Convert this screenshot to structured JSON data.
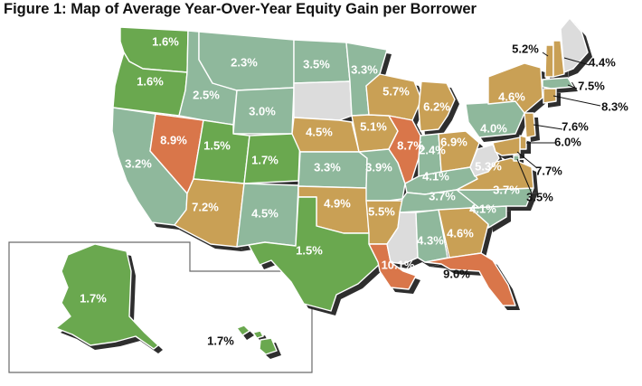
{
  "title": "Figure 1: Map of Average Year-Over-Year Equity Gain per Borrower",
  "colors": {
    "green": "#6aa84f",
    "teal": "#8fb89c",
    "tan": "#c9a055",
    "orange": "#d9764a",
    "gray": "#dcdcdc",
    "shadow": "#2e2e2e"
  },
  "states": [
    {
      "state": "WA",
      "value": "1.6%",
      "color": "green"
    },
    {
      "state": "OR",
      "value": "1.6%",
      "color": "green"
    },
    {
      "state": "CA",
      "value": "3.2%",
      "color": "teal"
    },
    {
      "state": "NV",
      "value": "8.9%",
      "color": "orange"
    },
    {
      "state": "ID",
      "value": "2.5%",
      "color": "teal"
    },
    {
      "state": "MT",
      "value": "2.3%",
      "color": "teal"
    },
    {
      "state": "WY",
      "value": "3.0%",
      "color": "teal"
    },
    {
      "state": "UT",
      "value": "1.5%",
      "color": "green"
    },
    {
      "state": "AZ",
      "value": "7.2%",
      "color": "tan"
    },
    {
      "state": "CO",
      "value": "1.7%",
      "color": "green"
    },
    {
      "state": "NM",
      "value": "4.5%",
      "color": "teal"
    },
    {
      "state": "ND",
      "value": "3.5%",
      "color": "teal"
    },
    {
      "state": "SD",
      "value": "",
      "color": "gray"
    },
    {
      "state": "NE",
      "value": "4.5%",
      "color": "tan"
    },
    {
      "state": "KS",
      "value": "3.3%",
      "color": "teal"
    },
    {
      "state": "OK",
      "value": "4.9%",
      "color": "tan"
    },
    {
      "state": "TX",
      "value": "1.5%",
      "color": "green"
    },
    {
      "state": "MN",
      "value": "3.3%",
      "color": "teal"
    },
    {
      "state": "IA",
      "value": "5.1%",
      "color": "tan"
    },
    {
      "state": "MO",
      "value": "3.9%",
      "color": "teal"
    },
    {
      "state": "AR",
      "value": "5.5%",
      "color": "tan"
    },
    {
      "state": "LA",
      "value": "10.1%",
      "color": "orange"
    },
    {
      "state": "WI",
      "value": "5.7%",
      "color": "tan"
    },
    {
      "state": "IL",
      "value": "8.7%",
      "color": "orange"
    },
    {
      "state": "MI",
      "value": "6.2%",
      "color": "tan"
    },
    {
      "state": "IN",
      "value": "2.4%",
      "color": "teal"
    },
    {
      "state": "OH",
      "value": "6.9%",
      "color": "tan"
    },
    {
      "state": "KY",
      "value": "4.1%",
      "color": "teal"
    },
    {
      "state": "TN",
      "value": "3.7%",
      "color": "teal"
    },
    {
      "state": "MS",
      "value": "",
      "color": "gray"
    },
    {
      "state": "AL",
      "value": "4.3%",
      "color": "teal"
    },
    {
      "state": "GA",
      "value": "4.6%",
      "color": "tan"
    },
    {
      "state": "FL",
      "value": "9.0%",
      "color": "orange"
    },
    {
      "state": "SC",
      "value": "4.1%",
      "color": "teal"
    },
    {
      "state": "NC",
      "value": "3.7%",
      "color": "teal"
    },
    {
      "state": "VA",
      "value": "5.3%",
      "color": "tan"
    },
    {
      "state": "WV",
      "value": "",
      "color": "gray"
    },
    {
      "state": "PA",
      "value": "4.0%",
      "color": "teal"
    },
    {
      "state": "NY",
      "value": "4.6%",
      "color": "tan"
    },
    {
      "state": "VT",
      "value": "5.2%",
      "color": "tan"
    },
    {
      "state": "NH",
      "value": "4.4%",
      "color": "tan"
    },
    {
      "state": "ME",
      "value": "",
      "color": "gray"
    },
    {
      "state": "MA",
      "value": "7.5%",
      "color": "teal"
    },
    {
      "state": "CT",
      "value": "8.3%",
      "color": "tan"
    },
    {
      "state": "NJ",
      "value": "7.6%",
      "color": "tan"
    },
    {
      "state": "DE",
      "value": "6.0%",
      "color": "tan"
    },
    {
      "state": "MD",
      "value": "7.7%",
      "color": "tan"
    },
    {
      "state": "DC",
      "value": "3.5%",
      "color": "teal"
    },
    {
      "state": "AK",
      "value": "1.7%",
      "color": "green"
    },
    {
      "state": "HI",
      "value": "1.7%",
      "color": "green"
    }
  ]
}
